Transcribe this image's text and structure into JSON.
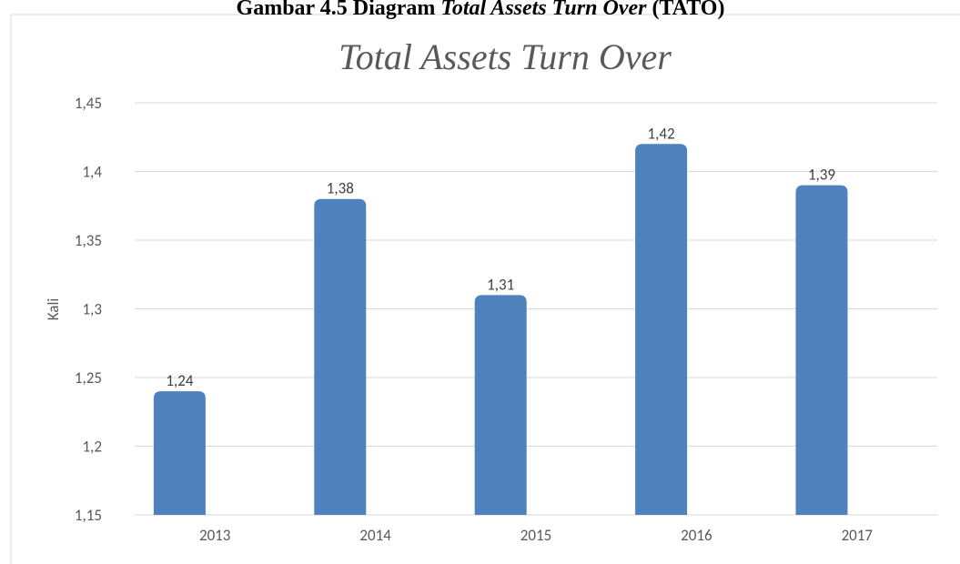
{
  "caption": [
    "Gambar 4.5 Diagram",
    "Total Assets Turn Over",
    "(TATO)"
  ],
  "chart_data": {
    "type": "bar",
    "title": "Total Assets Turn Over",
    "y_label": "Kali",
    "categories": [
      "2013",
      "2014",
      "2015",
      "2016",
      "2017"
    ],
    "values": [
      1.24,
      1.38,
      1.31,
      1.42,
      1.39
    ],
    "value_labels": [
      "1,24",
      "1,38",
      "1,31",
      "1,42",
      "1,39"
    ],
    "color": "#4f81bd",
    "ylim": [
      1.15,
      1.45
    ],
    "yticks": [
      {
        "value": 1.15,
        "label": "1,15"
      },
      {
        "value": 1.2,
        "label": "1,2"
      },
      {
        "value": 1.25,
        "label": "1,25"
      },
      {
        "value": 1.3,
        "label": "1,3"
      },
      {
        "value": 1.35,
        "label": "1,35"
      },
      {
        "value": 1.4,
        "label": "1,4"
      },
      {
        "value": 1.45,
        "label": "1,45"
      }
    ],
    "grid": true
  }
}
